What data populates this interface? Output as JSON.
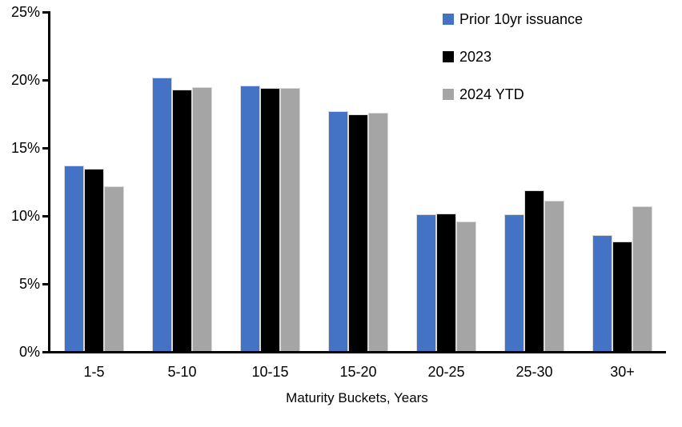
{
  "chart_data": {
    "type": "bar",
    "title": "",
    "xlabel": "Maturity Buckets, Years",
    "ylabel": "",
    "ylim": [
      0,
      25
    ],
    "ytick_step": 5,
    "yticks": [
      "0%",
      "5%",
      "10%",
      "15%",
      "20%",
      "25%"
    ],
    "grid": false,
    "legend_position": "top-right",
    "background_color": "#FFFFFF",
    "axis_color": "#000000",
    "categories": [
      "1-5",
      "5-10",
      "10-15",
      "15-20",
      "20-25",
      "25-30",
      "30+"
    ],
    "series": [
      {
        "name": "Prior 10yr issuance",
        "color": "#4472C4",
        "values": [
          13.7,
          20.2,
          19.6,
          17.7,
          10.1,
          10.1,
          8.6
        ]
      },
      {
        "name": "2023",
        "color": "#000000",
        "values": [
          13.5,
          19.3,
          19.4,
          17.5,
          10.2,
          11.9,
          8.1
        ]
      },
      {
        "name": "2024 YTD",
        "color": "#A5A5A5",
        "values": [
          12.2,
          19.5,
          19.4,
          17.6,
          9.6,
          11.1,
          10.7
        ]
      }
    ]
  }
}
